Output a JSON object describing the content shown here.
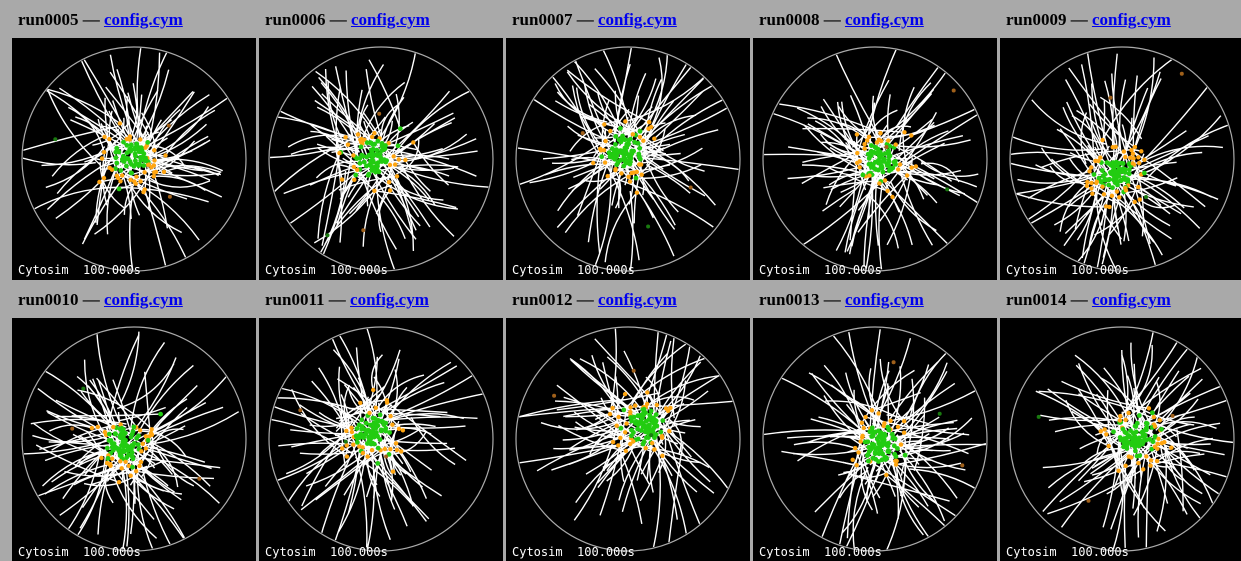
{
  "cells": [
    {
      "run": "run0005",
      "separator": "—",
      "link": "config.cym",
      "caption": "Cytosim  100.000s"
    },
    {
      "run": "run0006",
      "separator": "—",
      "link": "config.cym",
      "caption": "Cytosim  100.000s"
    },
    {
      "run": "run0007",
      "separator": "—",
      "link": "config.cym",
      "caption": "Cytosim  100.000s"
    },
    {
      "run": "run0008",
      "separator": "—",
      "link": "config.cym",
      "caption": "Cytosim  100.000s"
    },
    {
      "run": "run0009",
      "separator": "—",
      "link": "config.cym",
      "caption": "Cytosim  100.000s"
    },
    {
      "run": "run0010",
      "separator": "—",
      "link": "config.cym",
      "caption": "Cytosim  100.000s"
    },
    {
      "run": "run0011",
      "separator": "—",
      "link": "config.cym",
      "caption": "Cytosim  100.000s"
    },
    {
      "run": "run0012",
      "separator": "—",
      "link": "config.cym",
      "caption": "Cytosim  100.000s"
    },
    {
      "run": "run0013",
      "separator": "—",
      "link": "config.cym",
      "caption": "Cytosim  100.000s"
    },
    {
      "run": "run0014",
      "separator": "—",
      "link": "config.cym",
      "caption": "Cytosim  100.000s"
    }
  ]
}
